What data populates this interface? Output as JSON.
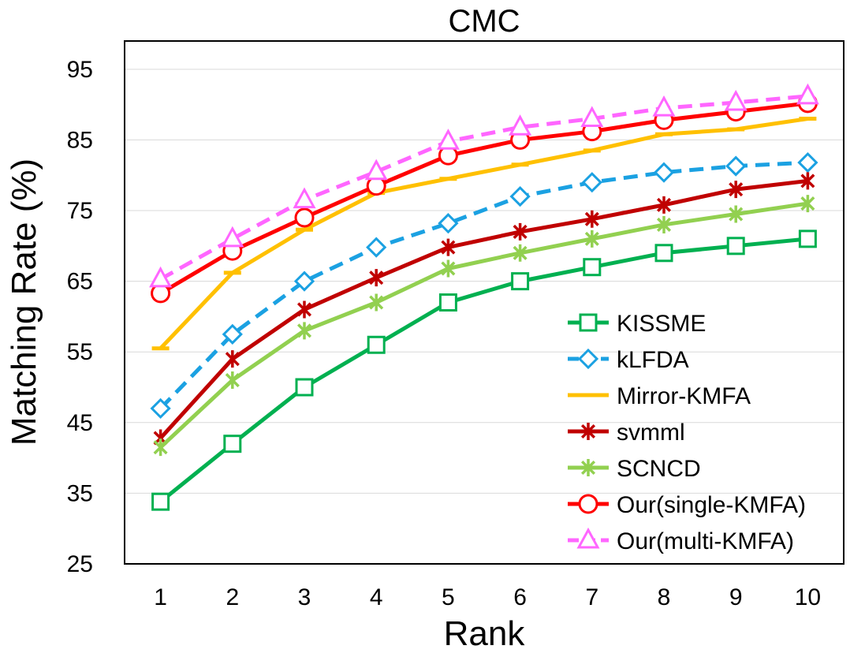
{
  "chart_data": {
    "type": "line",
    "title": "CMC",
    "xlabel": "Rank",
    "ylabel": "Matching Rate (%)",
    "x": [
      1,
      2,
      3,
      4,
      5,
      6,
      7,
      8,
      9,
      10
    ],
    "xlim": [
      0.5,
      10.5
    ],
    "ylim": [
      25,
      99
    ],
    "yticks": [
      25,
      35,
      45,
      55,
      65,
      75,
      85,
      95
    ],
    "grid": "horizontal",
    "legend_position": "bottom-right",
    "series": [
      {
        "name": "KISSME",
        "color": "#00b050",
        "marker": "square",
        "dashed": false,
        "values": [
          33.8,
          42.0,
          50.0,
          56.0,
          62.0,
          65.0,
          67.0,
          69.0,
          70.0,
          71.0
        ]
      },
      {
        "name": "kLFDA",
        "color": "#1ba1e2",
        "marker": "diamond",
        "dashed": true,
        "values": [
          47.0,
          57.5,
          65.0,
          69.8,
          73.2,
          77.0,
          79.0,
          80.4,
          81.3,
          81.8
        ]
      },
      {
        "name": "Mirror-KMFA",
        "color": "#ffc000",
        "marker": "dash",
        "dashed": false,
        "values": [
          55.5,
          66.2,
          72.3,
          77.5,
          79.5,
          81.5,
          83.5,
          85.8,
          86.5,
          88.0
        ]
      },
      {
        "name": "svmml",
        "color": "#c00000",
        "marker": "asterisk",
        "dashed": false,
        "values": [
          42.8,
          54.0,
          61.0,
          65.5,
          69.8,
          72.0,
          73.8,
          75.8,
          78.0,
          79.2
        ]
      },
      {
        "name": "SCNCD",
        "color": "#92d050",
        "marker": "asterisk",
        "dashed": false,
        "values": [
          41.5,
          51.0,
          58.0,
          62.0,
          66.8,
          69.0,
          71.0,
          73.0,
          74.5,
          76.0
        ]
      },
      {
        "name": "Our(single-KMFA)",
        "color": "#ff0000",
        "marker": "circle",
        "dashed": false,
        "values": [
          63.3,
          69.3,
          74.0,
          78.5,
          82.8,
          85.0,
          86.2,
          87.8,
          89.0,
          90.2
        ]
      },
      {
        "name": "Our(multi-KMFA)",
        "color": "#ff66ff",
        "marker": "triangle",
        "dashed": true,
        "values": [
          65.3,
          71.0,
          76.5,
          80.5,
          84.8,
          86.8,
          88.0,
          89.5,
          90.3,
          91.2
        ]
      }
    ]
  }
}
